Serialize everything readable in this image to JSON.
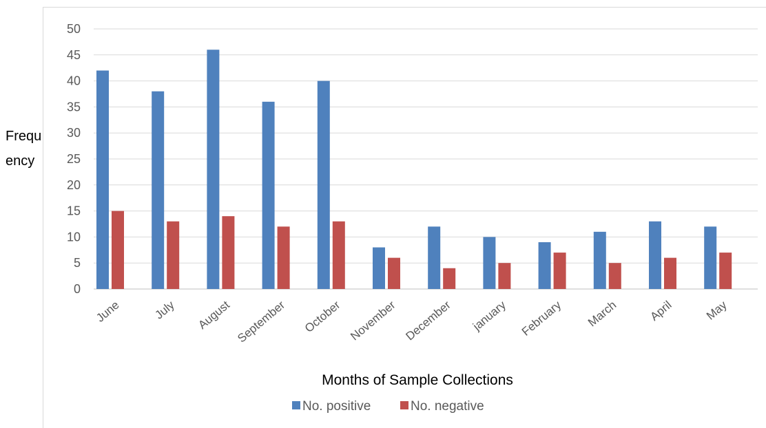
{
  "chart_data": {
    "type": "bar",
    "categories": [
      "June",
      "July",
      "August",
      "September",
      "October",
      "November",
      "December",
      "january",
      "February",
      "March",
      "April",
      "May"
    ],
    "series": [
      {
        "name": "No. positive",
        "values": [
          42,
          38,
          46,
          36,
          40,
          8,
          12,
          10,
          9,
          11,
          13,
          12
        ],
        "color": "#4f81bd"
      },
      {
        "name": "No. negative",
        "values": [
          15,
          13,
          14,
          12,
          13,
          6,
          4,
          5,
          7,
          5,
          6,
          7
        ],
        "color": "#c0504d"
      }
    ],
    "title": "",
    "xlabel": "Months of Sample Collections",
    "ylabel": "Frequency",
    "ylim": [
      0,
      50
    ],
    "yticks": [
      0,
      5,
      10,
      15,
      20,
      25,
      30,
      35,
      40,
      45,
      50
    ],
    "grid": true,
    "legend": "bottom"
  }
}
